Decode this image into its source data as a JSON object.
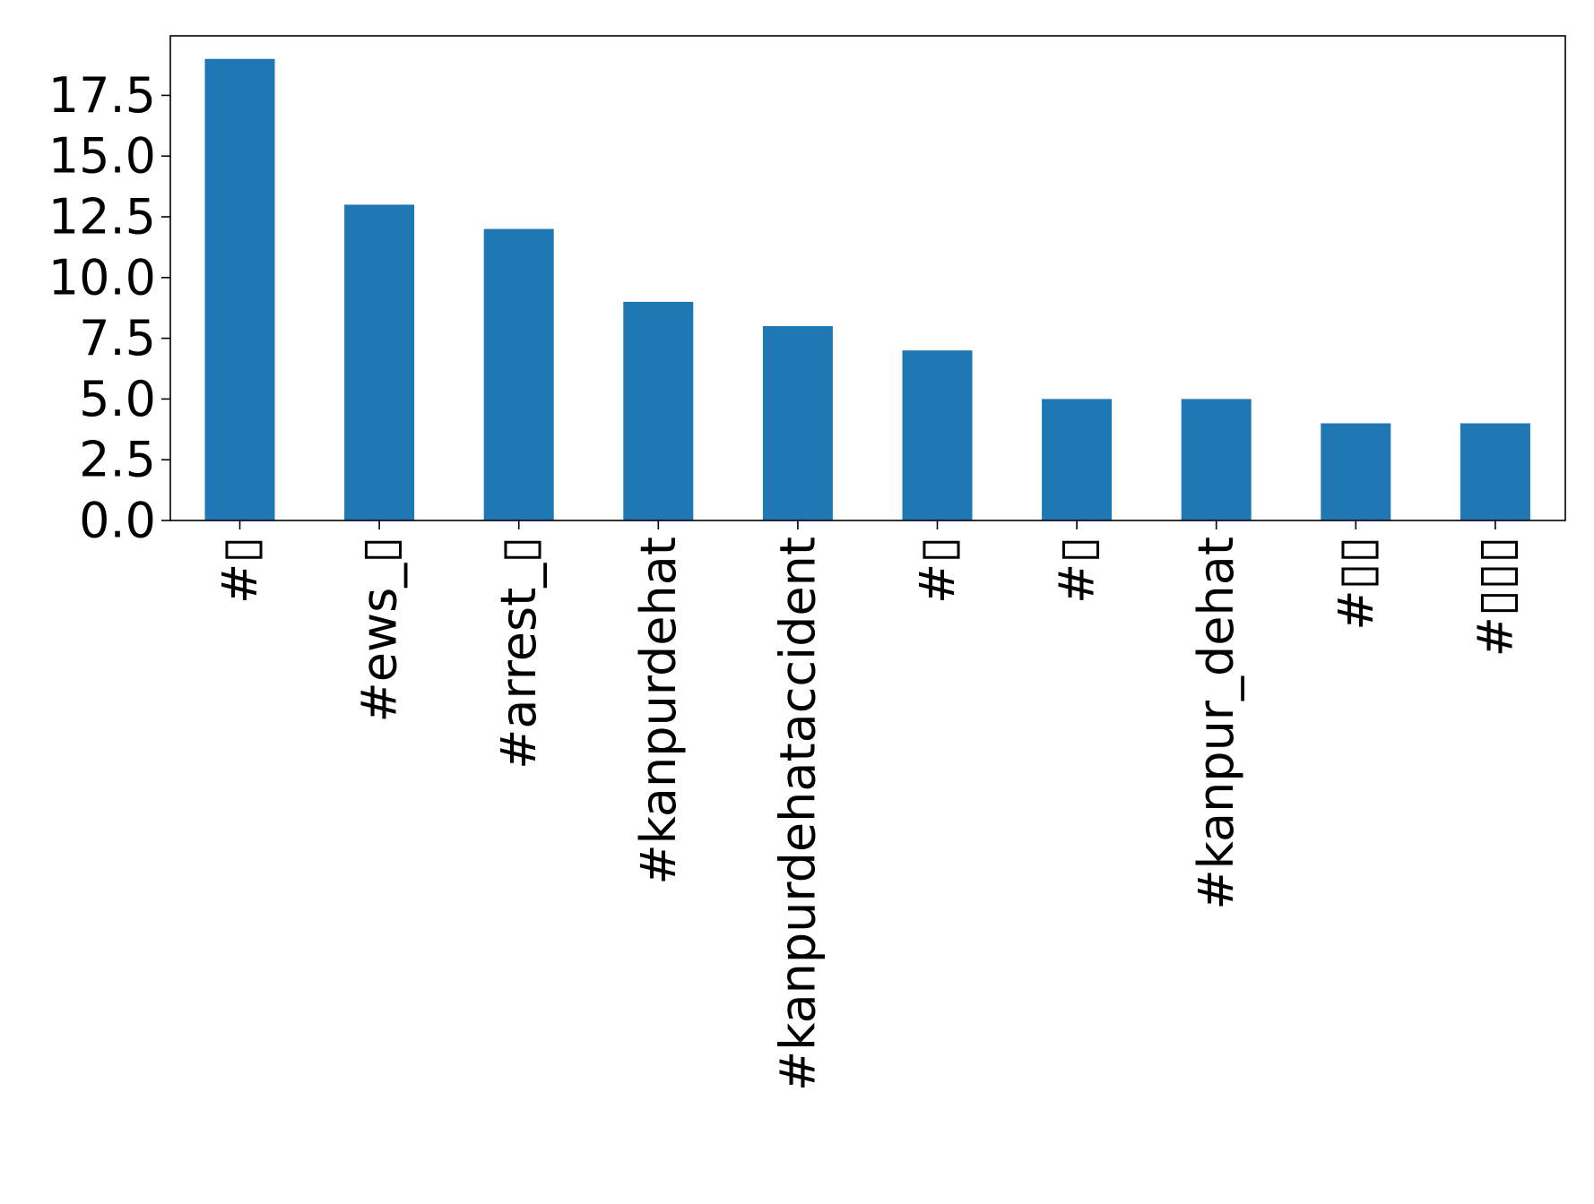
{
  "chart_data": {
    "type": "bar",
    "categories": [
      "#▯",
      "#ews_▯",
      "#arrest_▯",
      "#kanpurdehat",
      "#kanpurdehataccident",
      "#▯",
      "#▯",
      "#kanpur_dehat",
      "#▯▯",
      "#▯▯▯"
    ],
    "values": [
      19,
      13,
      12,
      9,
      8,
      7,
      5,
      5,
      4,
      4
    ],
    "yticks": [
      "0.0",
      "2.5",
      "5.0",
      "7.5",
      "10.0",
      "12.5",
      "15.0",
      "17.5"
    ],
    "ylim": [
      0,
      19.95
    ],
    "title": "",
    "xlabel": "",
    "ylabel": "",
    "grid": false,
    "legend": "none",
    "bar_color": "#1f77b4"
  }
}
